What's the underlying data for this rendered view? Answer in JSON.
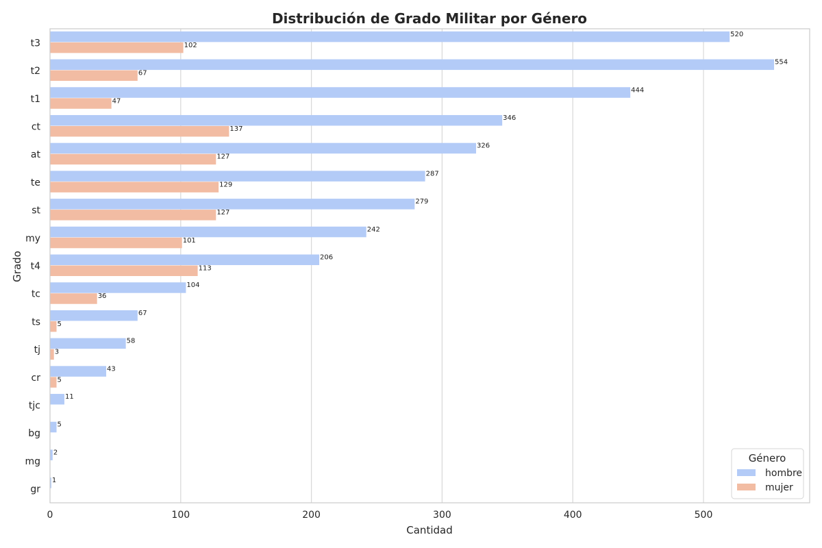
{
  "chart_data": {
    "type": "bar",
    "orientation": "horizontal",
    "title": "Distribución de Grado Militar por Género",
    "xlabel": "Cantidad",
    "ylabel": "Grado",
    "categories": [
      "t3",
      "t2",
      "t1",
      "ct",
      "at",
      "te",
      "st",
      "my",
      "t4",
      "tc",
      "ts",
      "tj",
      "cr",
      "tjc",
      "bg",
      "mg",
      "gr"
    ],
    "series": [
      {
        "name": "hombre",
        "color": "#b3cbf7",
        "values": [
          520,
          554,
          444,
          346,
          326,
          287,
          279,
          242,
          206,
          104,
          67,
          58,
          43,
          11,
          5,
          2,
          1
        ]
      },
      {
        "name": "mujer",
        "color": "#f2bca3",
        "values": [
          102,
          67,
          47,
          137,
          127,
          129,
          127,
          101,
          113,
          36,
          5,
          3,
          5,
          null,
          null,
          null,
          null
        ]
      }
    ],
    "xlim": [
      0,
      580
    ],
    "xticks": [
      0,
      100,
      200,
      300,
      400,
      500
    ],
    "grid": true,
    "legend": {
      "title": "Género",
      "placement": "lower-right"
    }
  }
}
